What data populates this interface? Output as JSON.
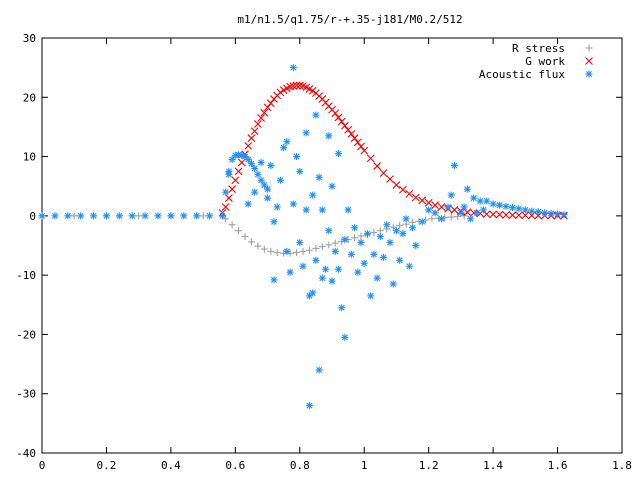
{
  "chart_data": {
    "type": "scatter",
    "title": "m1/n1.5/q1.75/r-+.35-j181/M0.2/512",
    "xlabel": "",
    "ylabel": "",
    "xlim": [
      0,
      1.8
    ],
    "ylim": [
      -40,
      30
    ],
    "xticks": [
      "0",
      "0.2",
      "0.4",
      "0.6",
      "0.8",
      "1",
      "1.2",
      "1.4",
      "1.6",
      "1.8"
    ],
    "yticks": [
      "30",
      "20",
      "10",
      "0",
      "-10",
      "-20",
      "-30",
      "-40"
    ],
    "grid": false,
    "legend_position": "top-right",
    "series": [
      {
        "name": "R stress",
        "marker": "+",
        "color": "#a0a0a0",
        "points": [
          [
            0.0,
            0
          ],
          [
            0.1,
            0
          ],
          [
            0.2,
            0
          ],
          [
            0.3,
            0
          ],
          [
            0.4,
            0
          ],
          [
            0.5,
            0
          ],
          [
            0.56,
            0
          ],
          [
            0.57,
            -0.5
          ],
          [
            0.59,
            -1.5
          ],
          [
            0.61,
            -2.5
          ],
          [
            0.63,
            -3.5
          ],
          [
            0.65,
            -4.4
          ],
          [
            0.67,
            -5.1
          ],
          [
            0.69,
            -5.6
          ],
          [
            0.71,
            -6.0
          ],
          [
            0.73,
            -6.2
          ],
          [
            0.75,
            -6.3
          ],
          [
            0.77,
            -6.3
          ],
          [
            0.79,
            -6.2
          ],
          [
            0.81,
            -6.0
          ],
          [
            0.83,
            -5.8
          ],
          [
            0.85,
            -5.5
          ],
          [
            0.87,
            -5.2
          ],
          [
            0.89,
            -4.9
          ],
          [
            0.91,
            -4.6
          ],
          [
            0.93,
            -4.3
          ],
          [
            0.95,
            -4.0
          ],
          [
            0.97,
            -3.7
          ],
          [
            0.99,
            -3.4
          ],
          [
            1.01,
            -3.1
          ],
          [
            1.03,
            -2.8
          ],
          [
            1.05,
            -2.5
          ],
          [
            1.07,
            -2.2
          ],
          [
            1.09,
            -1.9
          ],
          [
            1.11,
            -1.6
          ],
          [
            1.13,
            -1.4
          ],
          [
            1.15,
            -1.1
          ],
          [
            1.17,
            -0.9
          ],
          [
            1.19,
            -0.7
          ],
          [
            1.21,
            -0.5
          ],
          [
            1.23,
            -0.4
          ],
          [
            1.25,
            -0.3
          ],
          [
            1.27,
            -0.2
          ],
          [
            1.29,
            -0.1
          ],
          [
            1.31,
            0
          ]
        ]
      },
      {
        "name": "G work",
        "marker": "x",
        "color": "#ff0000",
        "points": [
          [
            0.56,
            0.5
          ],
          [
            0.57,
            1.5
          ],
          [
            0.58,
            3.0
          ],
          [
            0.59,
            4.5
          ],
          [
            0.6,
            6.0
          ],
          [
            0.61,
            7.5
          ],
          [
            0.62,
            9.0
          ],
          [
            0.63,
            10.4
          ],
          [
            0.64,
            11.8
          ],
          [
            0.65,
            13.1
          ],
          [
            0.66,
            14.3
          ],
          [
            0.67,
            15.5
          ],
          [
            0.68,
            16.5
          ],
          [
            0.69,
            17.4
          ],
          [
            0.7,
            18.3
          ],
          [
            0.71,
            19.0
          ],
          [
            0.72,
            19.7
          ],
          [
            0.73,
            20.3
          ],
          [
            0.74,
            20.8
          ],
          [
            0.75,
            21.2
          ],
          [
            0.76,
            21.5
          ],
          [
            0.77,
            21.8
          ],
          [
            0.78,
            21.9
          ],
          [
            0.79,
            22.0
          ],
          [
            0.8,
            22.0
          ],
          [
            0.81,
            21.9
          ],
          [
            0.82,
            21.7
          ],
          [
            0.83,
            21.4
          ],
          [
            0.84,
            21.1
          ],
          [
            0.85,
            20.7
          ],
          [
            0.86,
            20.2
          ],
          [
            0.87,
            19.7
          ],
          [
            0.88,
            19.1
          ],
          [
            0.89,
            18.5
          ],
          [
            0.9,
            17.9
          ],
          [
            0.91,
            17.3
          ],
          [
            0.92,
            16.6
          ],
          [
            0.93,
            15.9
          ],
          [
            0.94,
            15.2
          ],
          [
            0.95,
            14.5
          ],
          [
            0.96,
            13.8
          ],
          [
            0.97,
            13.1
          ],
          [
            0.98,
            12.4
          ],
          [
            0.99,
            11.7
          ],
          [
            1.0,
            11.0
          ],
          [
            1.02,
            9.7
          ],
          [
            1.04,
            8.4
          ],
          [
            1.06,
            7.2
          ],
          [
            1.08,
            6.2
          ],
          [
            1.1,
            5.2
          ],
          [
            1.12,
            4.4
          ],
          [
            1.14,
            3.7
          ],
          [
            1.16,
            3.1
          ],
          [
            1.18,
            2.6
          ],
          [
            1.2,
            2.2
          ],
          [
            1.22,
            1.8
          ],
          [
            1.24,
            1.5
          ],
          [
            1.26,
            1.2
          ],
          [
            1.28,
            1.0
          ],
          [
            1.3,
            0.8
          ],
          [
            1.32,
            0.6
          ],
          [
            1.34,
            0.5
          ],
          [
            1.36,
            0.4
          ],
          [
            1.38,
            0.3
          ],
          [
            1.4,
            0.25
          ],
          [
            1.42,
            0.2
          ],
          [
            1.44,
            0.15
          ],
          [
            1.46,
            0.12
          ],
          [
            1.48,
            0.1
          ],
          [
            1.5,
            0.08
          ],
          [
            1.52,
            0.06
          ],
          [
            1.54,
            0.05
          ],
          [
            1.56,
            0.04
          ],
          [
            1.58,
            0.03
          ],
          [
            1.6,
            0.02
          ],
          [
            1.62,
            0.01
          ]
        ]
      },
      {
        "name": "Acoustic flux",
        "marker": "*",
        "color": "#1e90ff",
        "points": [
          [
            0.0,
            0
          ],
          [
            0.04,
            0
          ],
          [
            0.08,
            0
          ],
          [
            0.12,
            0
          ],
          [
            0.16,
            0
          ],
          [
            0.2,
            0
          ],
          [
            0.24,
            0
          ],
          [
            0.28,
            0
          ],
          [
            0.32,
            0
          ],
          [
            0.36,
            0
          ],
          [
            0.4,
            0
          ],
          [
            0.44,
            0
          ],
          [
            0.48,
            0
          ],
          [
            0.52,
            0
          ],
          [
            0.56,
            0
          ],
          [
            0.57,
            4.0
          ],
          [
            0.58,
            7.5
          ],
          [
            0.59,
            9.5
          ],
          [
            0.6,
            10.2
          ],
          [
            0.61,
            10.3
          ],
          [
            0.62,
            10.2
          ],
          [
            0.63,
            10.0
          ],
          [
            0.64,
            9.5
          ],
          [
            0.65,
            8.8
          ],
          [
            0.66,
            8.0
          ],
          [
            0.67,
            7.0
          ],
          [
            0.68,
            6.0
          ],
          [
            0.69,
            5.2
          ],
          [
            0.7,
            4.5
          ],
          [
            0.58,
            7.0
          ],
          [
            0.64,
            2.0
          ],
          [
            0.66,
            4.0
          ],
          [
            0.68,
            9.0
          ],
          [
            0.7,
            3.0
          ],
          [
            0.71,
            8.5
          ],
          [
            0.72,
            -1.0
          ],
          [
            0.72,
            -10.8
          ],
          [
            0.73,
            1.5
          ],
          [
            0.74,
            6.0
          ],
          [
            0.75,
            11.5
          ],
          [
            0.76,
            12.5
          ],
          [
            0.76,
            -6.0
          ],
          [
            0.77,
            -9.5
          ],
          [
            0.78,
            25.0
          ],
          [
            0.78,
            2.0
          ],
          [
            0.79,
            10.0
          ],
          [
            0.8,
            -4.5
          ],
          [
            0.8,
            7.5
          ],
          [
            0.81,
            -8.5
          ],
          [
            0.82,
            14.0
          ],
          [
            0.82,
            1.0
          ],
          [
            0.83,
            -13.5
          ],
          [
            0.83,
            -32.0
          ],
          [
            0.84,
            3.5
          ],
          [
            0.84,
            -13.0
          ],
          [
            0.85,
            17.0
          ],
          [
            0.85,
            -7.5
          ],
          [
            0.86,
            -26.0
          ],
          [
            0.86,
            6.5
          ],
          [
            0.87,
            1.0
          ],
          [
            0.87,
            -10.5
          ],
          [
            0.88,
            -9.0
          ],
          [
            0.89,
            13.5
          ],
          [
            0.89,
            -2.5
          ],
          [
            0.9,
            5.0
          ],
          [
            0.9,
            -11.0
          ],
          [
            0.91,
            -6.0
          ],
          [
            0.92,
            10.5
          ],
          [
            0.92,
            -9.0
          ],
          [
            0.93,
            -15.5
          ],
          [
            0.94,
            -20.5
          ],
          [
            0.94,
            -4.0
          ],
          [
            0.95,
            1.0
          ],
          [
            0.96,
            -6.5
          ],
          [
            0.97,
            -2.0
          ],
          [
            0.98,
            -9.5
          ],
          [
            0.99,
            -4.5
          ],
          [
            1.0,
            -8.0
          ],
          [
            1.01,
            -3.0
          ],
          [
            1.02,
            -13.5
          ],
          [
            1.03,
            -6.5
          ],
          [
            1.04,
            -10.5
          ],
          [
            1.05,
            -3.5
          ],
          [
            1.06,
            -7.0
          ],
          [
            1.07,
            -1.5
          ],
          [
            1.08,
            -4.5
          ],
          [
            1.09,
            -11.5
          ],
          [
            1.1,
            -2.5
          ],
          [
            1.11,
            -7.5
          ],
          [
            1.12,
            -3.0
          ],
          [
            1.13,
            -0.5
          ],
          [
            1.14,
            -8.5
          ],
          [
            1.15,
            -2.0
          ],
          [
            1.16,
            -5.0
          ],
          [
            1.18,
            -1.0
          ],
          [
            1.2,
            1.0
          ],
          [
            1.22,
            0.5
          ],
          [
            1.24,
            -0.5
          ],
          [
            1.26,
            1.5
          ],
          [
            1.27,
            3.5
          ],
          [
            1.28,
            8.5
          ],
          [
            1.3,
            0.5
          ],
          [
            1.31,
            1.5
          ],
          [
            1.32,
            4.5
          ],
          [
            1.33,
            -0.5
          ],
          [
            1.34,
            3.0
          ],
          [
            1.35,
            0.5
          ],
          [
            1.36,
            2.5
          ],
          [
            1.37,
            1.0
          ],
          [
            1.38,
            2.5
          ],
          [
            1.4,
            2.0
          ],
          [
            1.42,
            1.8
          ],
          [
            1.44,
            1.6
          ],
          [
            1.46,
            1.4
          ],
          [
            1.48,
            1.2
          ],
          [
            1.5,
            1.0
          ],
          [
            1.52,
            0.8
          ],
          [
            1.54,
            0.7
          ],
          [
            1.56,
            0.5
          ],
          [
            1.58,
            0.4
          ],
          [
            1.6,
            0.3
          ],
          [
            1.62,
            0.2
          ]
        ]
      }
    ]
  }
}
